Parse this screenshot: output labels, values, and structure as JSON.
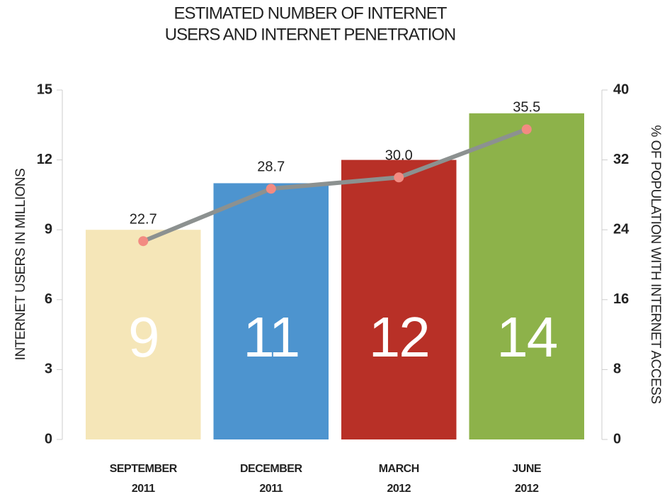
{
  "chart_data": {
    "type": "bar",
    "title": [
      "ESTIMATED NUMBER OF INTERNET",
      "USERS AND INTERNET PENETRATION"
    ],
    "ylabel": "INTERNET USERS IN MILLIONS",
    "y2label": "% OF POPULATION WITH INTERNET ACCESS",
    "categories": [
      [
        "SEPTEMBER",
        "2011"
      ],
      [
        "DECEMBER",
        "2011"
      ],
      [
        "MARCH",
        "2012"
      ],
      [
        "JUNE",
        "2012"
      ]
    ],
    "series": [
      {
        "type": "bar",
        "colors": [
          "#f5e6b8",
          "#4d94cf",
          "#b83027",
          "#8db24a"
        ],
        "values": [
          9,
          11,
          12,
          14
        ]
      },
      {
        "type": "line",
        "axis": "y2",
        "color": "#8c9190",
        "marker_color": "#f28b82",
        "values": [
          22.7,
          28.7,
          30,
          35.5
        ],
        "value_labels": [
          "22.7",
          "28.7",
          "30.0",
          "35.5"
        ]
      }
    ],
    "ylim": [
      0,
      15
    ],
    "yticks": [
      0,
      3,
      6,
      9,
      12,
      15
    ],
    "y2lim": [
      0,
      40
    ],
    "y2ticks": [
      0,
      8,
      16,
      24,
      32,
      40
    ]
  }
}
